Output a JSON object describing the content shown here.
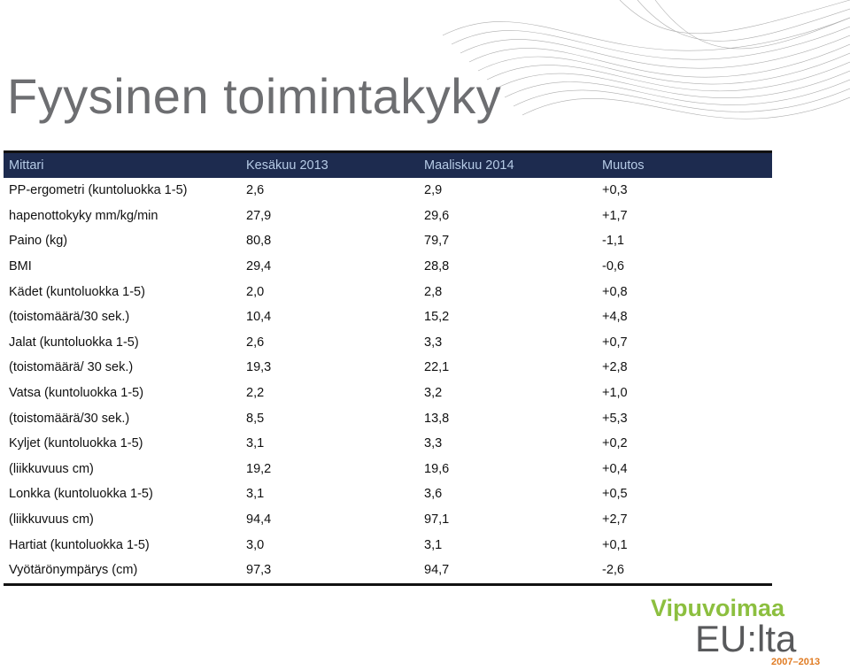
{
  "title": "Fyysinen toimintakyky",
  "table": {
    "header": [
      "Mittari",
      "Kesäkuu 2013",
      "Maaliskuu 2014",
      "Muutos"
    ],
    "rows": [
      [
        "PP-ergometri (kuntoluokka 1-5)",
        "2,6",
        "2,9",
        "+0,3"
      ],
      [
        "hapenottokyky mm/kg/min",
        "27,9",
        "29,6",
        "+1,7"
      ],
      [
        "Paino (kg)",
        "80,8",
        "79,7",
        "-1,1"
      ],
      [
        "BMI",
        "29,4",
        "28,8",
        "-0,6"
      ],
      [
        "Kädet (kuntoluokka 1-5)",
        "2,0",
        "2,8",
        "+0,8"
      ],
      [
        "(toistomäärä/30 sek.)",
        "10,4",
        "15,2",
        "+4,8"
      ],
      [
        "Jalat (kuntoluokka 1-5)",
        "2,6",
        "3,3",
        "+0,7"
      ],
      [
        "(toistomäärä/ 30 sek.)",
        "19,3",
        "22,1",
        "+2,8"
      ],
      [
        "Vatsa (kuntoluokka 1-5)",
        "2,2",
        "3,2",
        "+1,0"
      ],
      [
        "(toistomäärä/30 sek.)",
        "8,5",
        "13,8",
        "+5,3"
      ],
      [
        "Kyljet (kuntoluokka 1-5)",
        "3,1",
        "3,3",
        "+0,2"
      ],
      [
        "(liikkuvuus cm)",
        "19,2",
        "19,6",
        "+0,4"
      ],
      [
        "Lonkka (kuntoluokka 1-5)",
        "3,1",
        "3,6",
        "+0,5"
      ],
      [
        "(liikkuvuus cm)",
        "94,4",
        "97,1",
        "+2,7"
      ],
      [
        "Hartiat (kuntoluokka 1-5)",
        "3,0",
        "3,1",
        "+0,1"
      ],
      [
        "Vyötärönympärys (cm)",
        "97,3",
        "94,7",
        "-2,6"
      ]
    ]
  },
  "logo": {
    "line1": "Vipuvoimaa",
    "line2": "EU:lta",
    "years": "2007–2013"
  }
}
